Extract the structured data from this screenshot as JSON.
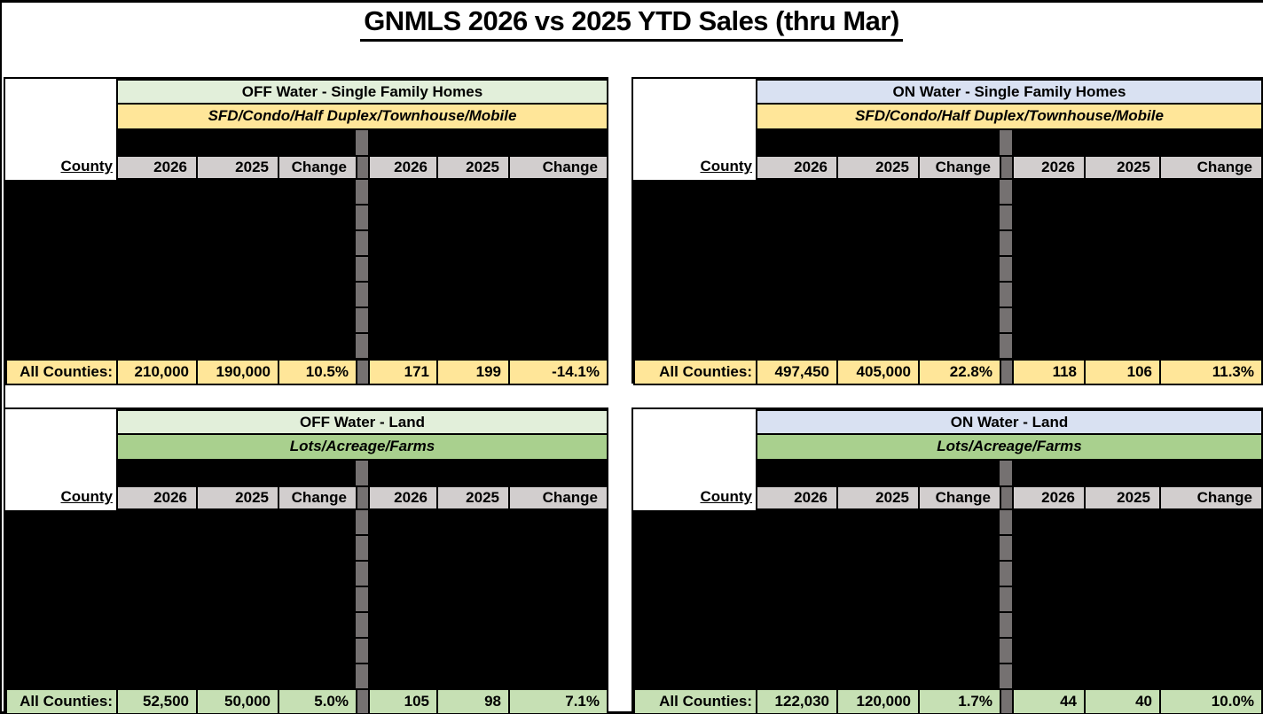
{
  "title": "GNMLS 2026 vs 2025 YTD Sales (thru Mar)",
  "county_label": "County",
  "totals_label": "All Counties:",
  "columns": [
    "2026",
    "2025",
    "Change"
  ],
  "colors": {
    "off_water_header": "#E2EFDA",
    "on_water_header": "#D9E1F2",
    "homes_subheader": "#FFE699",
    "land_subheader": "#A9D08E",
    "homes_totals_row": "#FFE699",
    "land_totals_row": "#C6E0B4",
    "column_header_bg": "#D2CECE",
    "divider_bar": "#757171",
    "redacted_block": "#000000"
  },
  "panels": [
    {
      "title": "OFF Water - Single Family Homes",
      "subtitle": "SFD/Condo/Half Duplex/Townhouse/Mobile",
      "totals": {
        "left_values": [
          "210,000",
          "190,000",
          "10.5%"
        ],
        "right_values": [
          "171",
          "199",
          "-14.1%"
        ]
      }
    },
    {
      "title": "ON Water - Single Family Homes",
      "subtitle": "SFD/Condo/Half Duplex/Townhouse/Mobile",
      "totals": {
        "left_values": [
          "497,450",
          "405,000",
          "22.8%"
        ],
        "right_values": [
          "118",
          "106",
          "11.3%"
        ]
      }
    },
    {
      "title": "OFF Water - Land",
      "subtitle": "Lots/Acreage/Farms",
      "totals": {
        "left_values": [
          "52,500",
          "50,000",
          "5.0%"
        ],
        "right_values": [
          "105",
          "98",
          "7.1%"
        ]
      }
    },
    {
      "title": "ON Water - Land",
      "subtitle": "Lots/Acreage/Farms",
      "totals": {
        "left_values": [
          "122,030",
          "120,000",
          "1.7%"
        ],
        "right_values": [
          "44",
          "40",
          "10.0%"
        ]
      }
    }
  ]
}
